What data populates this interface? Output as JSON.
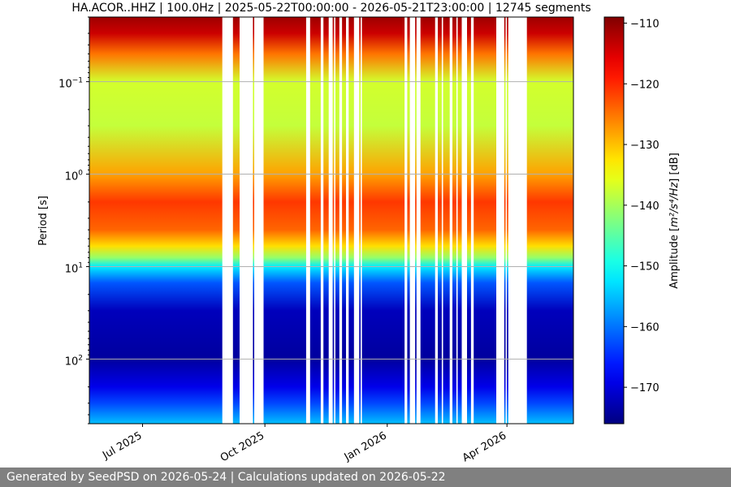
{
  "chart_data": {
    "type": "heatmap",
    "title": "HA.ACOR..HHZ | 100.0Hz | 2025-05-22T00:00:00 - 2026-05-21T23:00:00 | 12745 segments",
    "xlabel": "",
    "ylabel": "Period [s]",
    "y_scale": "log",
    "y_inverted": true,
    "ylim": [
      0.02,
      500
    ],
    "xlim": [
      "2025-05-22",
      "2026-05-21"
    ],
    "x_ticks": [
      {
        "date": "2025-07-01",
        "label": "Jul 2025"
      },
      {
        "date": "2025-10-01",
        "label": "Oct 2025"
      },
      {
        "date": "2026-01-01",
        "label": "Jan 2026"
      },
      {
        "date": "2026-04-01",
        "label": "Apr 2026"
      }
    ],
    "y_ticks": [
      {
        "value": 0.1,
        "base": "10",
        "exp": "−1"
      },
      {
        "value": 1,
        "base": "10",
        "exp": "0"
      },
      {
        "value": 10,
        "base": "10",
        "exp": "1"
      },
      {
        "value": 100,
        "base": "10",
        "exp": "2"
      }
    ],
    "grid": true,
    "colormap": "jet",
    "colorbar": {
      "label_main": "Amplitude [",
      "label_math": "m²/s⁴/Hz",
      "label_end": "] [dB]",
      "range": [
        -176,
        -109
      ],
      "ticks": [
        "−110",
        "−120",
        "−130",
        "−140",
        "−150",
        "−160",
        "−170"
      ],
      "tick_values": [
        -110,
        -120,
        -130,
        -140,
        -150,
        -160,
        -170
      ]
    },
    "data_gaps": [
      [
        "2025-08-30",
        "2025-09-07"
      ],
      [
        "2025-09-12",
        "2025-09-22"
      ],
      [
        "2025-09-23",
        "2025-09-30"
      ],
      [
        "2025-11-01",
        "2025-11-04"
      ],
      [
        "2025-11-12",
        "2025-11-14"
      ],
      [
        "2025-11-18",
        "2025-11-21"
      ],
      [
        "2025-11-22",
        "2025-11-23"
      ],
      [
        "2025-11-26",
        "2025-11-28"
      ],
      [
        "2025-12-01",
        "2025-12-03"
      ],
      [
        "2025-12-07",
        "2025-12-11"
      ],
      [
        "2025-12-12",
        "2025-12-13"
      ],
      [
        "2026-01-14",
        "2026-01-16"
      ],
      [
        "2026-01-18",
        "2026-01-22"
      ],
      [
        "2026-01-23",
        "2026-01-26"
      ],
      [
        "2026-02-06",
        "2026-02-08"
      ],
      [
        "2026-02-11",
        "2026-02-12"
      ],
      [
        "2026-02-17",
        "2026-02-19"
      ],
      [
        "2026-02-22",
        "2026-02-23"
      ],
      [
        "2026-02-26",
        "2026-03-02"
      ],
      [
        "2026-03-05",
        "2026-03-07"
      ],
      [
        "2026-03-24",
        "2026-03-30"
      ],
      [
        "2026-03-31",
        "2026-04-01"
      ],
      [
        "2026-04-02",
        "2026-04-16"
      ]
    ],
    "power_profile": [
      {
        "period": 0.02,
        "db": -111
      },
      {
        "period": 0.03,
        "db": -114
      },
      {
        "period": 0.05,
        "db": -125
      },
      {
        "period": 0.1,
        "db": -137
      },
      {
        "period": 0.3,
        "db": -138
      },
      {
        "period": 1,
        "db": -128
      },
      {
        "period": 2,
        "db": -121
      },
      {
        "period": 4,
        "db": -124
      },
      {
        "period": 6,
        "db": -132
      },
      {
        "period": 8,
        "db": -141
      },
      {
        "period": 10,
        "db": -152
      },
      {
        "period": 15,
        "db": -162
      },
      {
        "period": 30,
        "db": -172
      },
      {
        "period": 100,
        "db": -174
      },
      {
        "period": 200,
        "db": -169
      },
      {
        "period": 300,
        "db": -163
      },
      {
        "period": 500,
        "db": -155
      }
    ]
  },
  "footer": {
    "text": "Generated by SeedPSD on 2026-05-24 | Calculations updated on 2026-05-22"
  }
}
